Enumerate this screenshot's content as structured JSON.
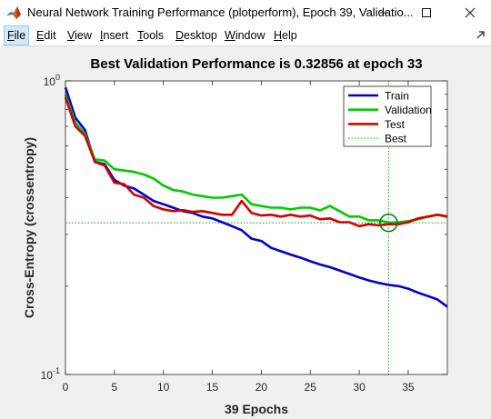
{
  "window": {
    "title": "Neural Network Training Performance (plotperform), Epoch 39, Validatio...",
    "icon": "matlab-icon",
    "controls": [
      "minimize-icon",
      "maximize-icon",
      "close-icon"
    ]
  },
  "menu": [
    {
      "label": "File",
      "key": "F"
    },
    {
      "label": "Edit",
      "key": "E"
    },
    {
      "label": "View",
      "key": "V"
    },
    {
      "label": "Insert",
      "key": "I"
    },
    {
      "label": "Tools",
      "key": "T"
    },
    {
      "label": "Desktop",
      "key": "D"
    },
    {
      "label": "Window",
      "key": "W"
    },
    {
      "label": "Help",
      "key": "H"
    }
  ],
  "chart_data": {
    "type": "line",
    "title": "Best Validation Performance is 0.32856 at epoch 33",
    "xlabel": "39 Epochs",
    "ylabel": "Cross-Entropy  (crossentropy)",
    "yscale": "log",
    "xlim": [
      0,
      39
    ],
    "ylim": [
      0.1,
      1
    ],
    "xticks": [
      0,
      5,
      10,
      15,
      20,
      25,
      30,
      35
    ],
    "yticks": [
      {
        "value": 0.1,
        "base": "10",
        "exp": "-1"
      },
      {
        "value": 1,
        "base": "10",
        "exp": "0"
      }
    ],
    "legend_position": "top-right",
    "grid": false,
    "series": [
      {
        "name": "Train",
        "color": "#0000d4",
        "x": [
          0,
          1,
          2,
          3,
          4,
          5,
          6,
          7,
          8,
          9,
          10,
          11,
          12,
          13,
          14,
          15,
          16,
          17,
          18,
          19,
          20,
          21,
          22,
          23,
          24,
          25,
          26,
          27,
          28,
          29,
          30,
          31,
          32,
          33,
          34,
          35,
          36,
          37,
          38,
          39
        ],
        "values": [
          0.95,
          0.75,
          0.68,
          0.53,
          0.52,
          0.46,
          0.44,
          0.43,
          0.41,
          0.39,
          0.38,
          0.37,
          0.36,
          0.355,
          0.345,
          0.34,
          0.33,
          0.32,
          0.31,
          0.29,
          0.285,
          0.27,
          0.263,
          0.256,
          0.25,
          0.243,
          0.237,
          0.232,
          0.226,
          0.22,
          0.214,
          0.209,
          0.205,
          0.202,
          0.2,
          0.196,
          0.19,
          0.185,
          0.18,
          0.17
        ]
      },
      {
        "name": "Validation",
        "color": "#00cc00",
        "x": [
          0,
          1,
          2,
          3,
          4,
          5,
          6,
          7,
          8,
          9,
          10,
          11,
          12,
          13,
          14,
          15,
          16,
          17,
          18,
          19,
          20,
          21,
          22,
          23,
          24,
          25,
          26,
          27,
          28,
          29,
          30,
          31,
          32,
          33,
          34,
          35,
          36,
          37,
          38,
          39
        ],
        "values": [
          0.9,
          0.72,
          0.66,
          0.54,
          0.535,
          0.5,
          0.495,
          0.49,
          0.48,
          0.465,
          0.44,
          0.425,
          0.42,
          0.41,
          0.405,
          0.4,
          0.4,
          0.405,
          0.41,
          0.38,
          0.375,
          0.37,
          0.37,
          0.365,
          0.37,
          0.37,
          0.362,
          0.375,
          0.36,
          0.345,
          0.345,
          0.335,
          0.335,
          0.329,
          0.33,
          0.333,
          0.338,
          0.345,
          0.35,
          0.346
        ]
      },
      {
        "name": "Test",
        "color": "#d40000",
        "x": [
          0,
          1,
          2,
          3,
          4,
          5,
          6,
          7,
          8,
          9,
          10,
          11,
          12,
          13,
          14,
          15,
          16,
          17,
          18,
          19,
          20,
          21,
          22,
          23,
          24,
          25,
          26,
          27,
          28,
          29,
          30,
          31,
          32,
          33,
          34,
          35,
          36,
          37,
          38,
          39
        ],
        "values": [
          0.88,
          0.7,
          0.65,
          0.53,
          0.515,
          0.45,
          0.445,
          0.41,
          0.4,
          0.375,
          0.365,
          0.36,
          0.363,
          0.358,
          0.36,
          0.355,
          0.35,
          0.35,
          0.39,
          0.355,
          0.348,
          0.35,
          0.345,
          0.35,
          0.345,
          0.348,
          0.338,
          0.34,
          0.33,
          0.33,
          0.32,
          0.325,
          0.322,
          0.325,
          0.325,
          0.33,
          0.34,
          0.345,
          0.35,
          0.345
        ]
      }
    ],
    "best": {
      "label": "Best",
      "epoch": 33,
      "value": 0.32856,
      "line_color": "#00aa00",
      "marker_color": "#007700"
    }
  }
}
